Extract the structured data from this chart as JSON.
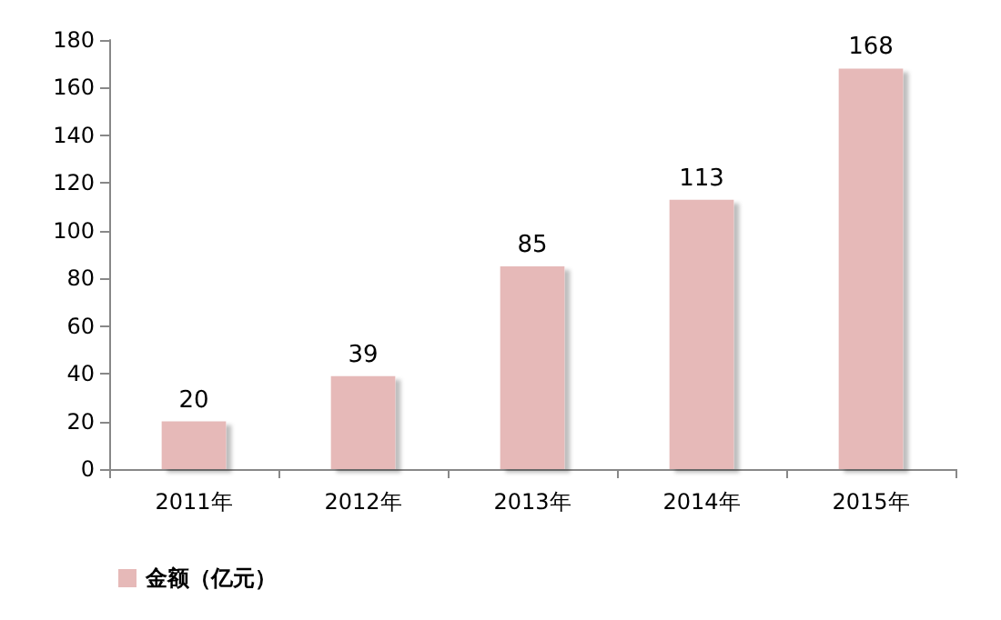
{
  "chart_data": {
    "type": "bar",
    "categories": [
      "2011年",
      "2012年",
      "2013年",
      "2014年",
      "2015年"
    ],
    "series": [
      {
        "name": "金额（亿元）",
        "color": "#e6b9b8",
        "values": [
          20,
          39,
          85,
          113,
          168
        ]
      }
    ],
    "ylim": [
      0,
      180
    ],
    "yticks": [
      0,
      20,
      40,
      60,
      80,
      100,
      120,
      140,
      160,
      180
    ],
    "grid": false,
    "legend": "bottom left",
    "data_labels": true
  }
}
